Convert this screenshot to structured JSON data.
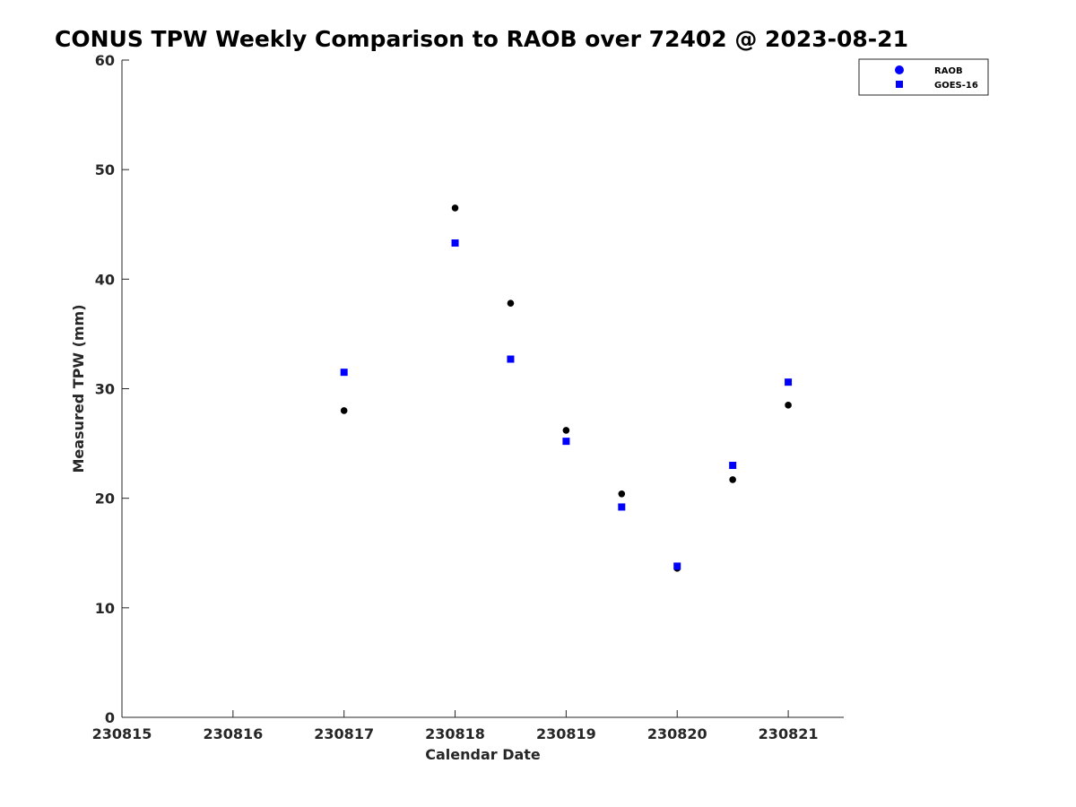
{
  "chart_data": {
    "type": "scatter",
    "title": "CONUS TPW Weekly Comparison to RAOB over 72402 @ 2023-08-21",
    "xlabel": "Calendar Date",
    "ylabel": "Measured TPW (mm)",
    "xlim": [
      230815,
      230821.5
    ],
    "ylim": [
      0,
      60
    ],
    "x_ticks": [
      230815,
      230816,
      230817,
      230818,
      230819,
      230820,
      230821
    ],
    "x_tick_labels": [
      "230815",
      "230816",
      "230817",
      "230818",
      "230819",
      "230820",
      "230821"
    ],
    "y_ticks": [
      0,
      10,
      20,
      30,
      40,
      50,
      60
    ],
    "y_tick_labels": [
      "0",
      "10",
      "20",
      "30",
      "40",
      "50",
      "60"
    ],
    "grid": false,
    "legend_position": "top-right",
    "x": [
      230817,
      230818,
      230818.5,
      230819,
      230819.5,
      230820,
      230820.5,
      230821
    ],
    "series": [
      {
        "name": "RAOB",
        "marker": "circle",
        "legend_color": "#0000ff",
        "color": "#000000",
        "values": [
          28.0,
          46.5,
          37.8,
          26.2,
          20.4,
          13.6,
          21.7,
          28.5
        ]
      },
      {
        "name": "GOES-16",
        "marker": "square",
        "color": "#0000ff",
        "values": [
          31.5,
          43.3,
          32.7,
          25.2,
          19.2,
          13.8,
          23.0,
          30.6
        ]
      }
    ]
  }
}
